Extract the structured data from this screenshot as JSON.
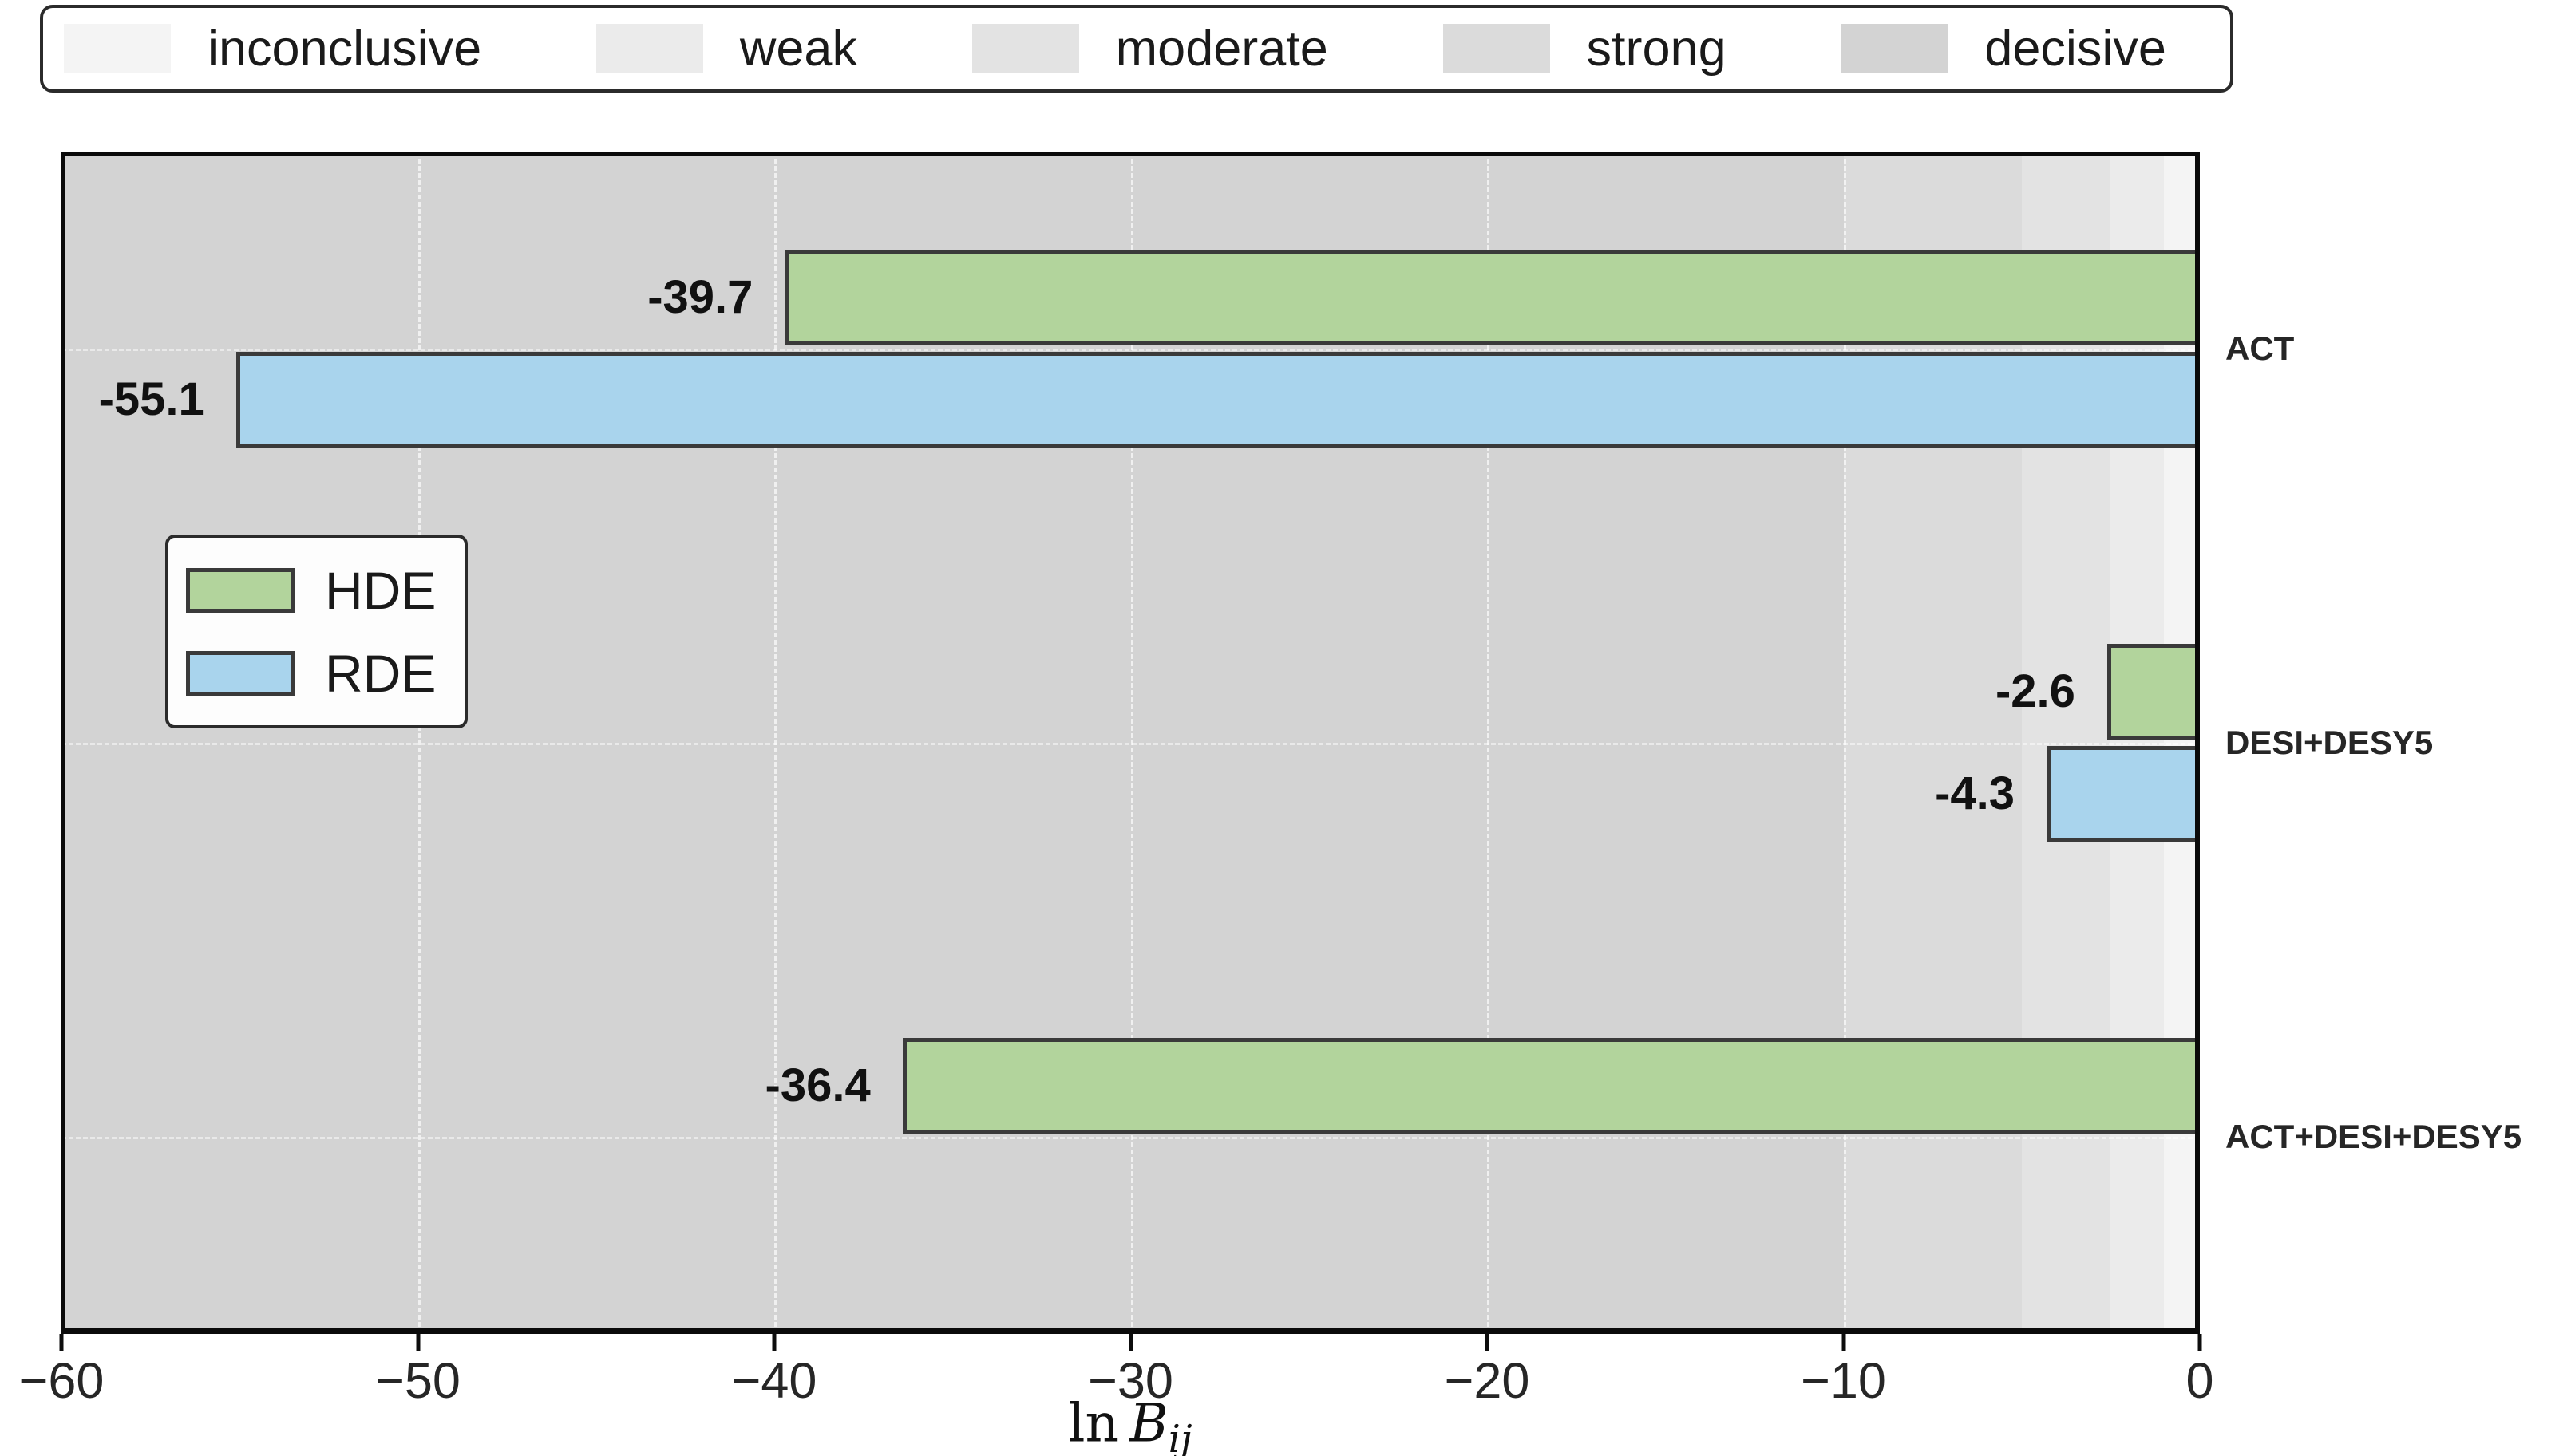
{
  "chart_data": {
    "type": "bar",
    "orientation": "horizontal",
    "title": "",
    "categories": [
      "ACT",
      "DESI+DESY5",
      "ACT+DESI+DESY5"
    ],
    "series": [
      {
        "name": "HDE",
        "color": "#b2d49c",
        "values": [
          -39.7,
          -2.6,
          -36.4
        ],
        "labels": [
          "-39.7",
          "-2.6",
          "-36.4"
        ]
      },
      {
        "name": "RDE",
        "color": "#a9d4ed",
        "values": [
          -55.1,
          -4.3,
          null
        ],
        "labels": [
          "-55.1",
          "-4.3",
          null
        ]
      }
    ],
    "bar_edge_color": "#3a3a3a",
    "xlim": [
      -60,
      0
    ],
    "xticks": [
      {
        "value": -60,
        "label": "−60"
      },
      {
        "value": -50,
        "label": "−50"
      },
      {
        "value": -40,
        "label": "−40"
      },
      {
        "value": -30,
        "label": "−30"
      },
      {
        "value": -20,
        "label": "−20"
      },
      {
        "value": -10,
        "label": "−10"
      },
      {
        "value": 0,
        "label": "0"
      }
    ],
    "grid": {
      "show": true,
      "vertical_ticks": [
        -50,
        -40,
        -30,
        -20,
        -10
      ]
    },
    "xlabel": {
      "prefix": "ln",
      "symbol": "B",
      "subscript": "ij"
    },
    "evidence_bands": [
      {
        "label": "inconclusive",
        "from": -1,
        "to": 0,
        "color": "#f4f4f4"
      },
      {
        "label": "weak",
        "from": -2.5,
        "to": -1,
        "color": "#ebebeb"
      },
      {
        "label": "moderate",
        "from": -5,
        "to": -2.5,
        "color": "#e3e3e3"
      },
      {
        "label": "strong",
        "from": -10,
        "to": -5,
        "color": "#dbdbdb"
      },
      {
        "label": "decisive",
        "from": -60,
        "to": -10,
        "color": "#d3d3d3"
      }
    ]
  },
  "colors": {
    "plot_background": "#d3d3d3",
    "spine": "#0a0a0a",
    "value_label": "#111111",
    "tick_label": "#262626",
    "legend_border": "#2b2b2b"
  }
}
